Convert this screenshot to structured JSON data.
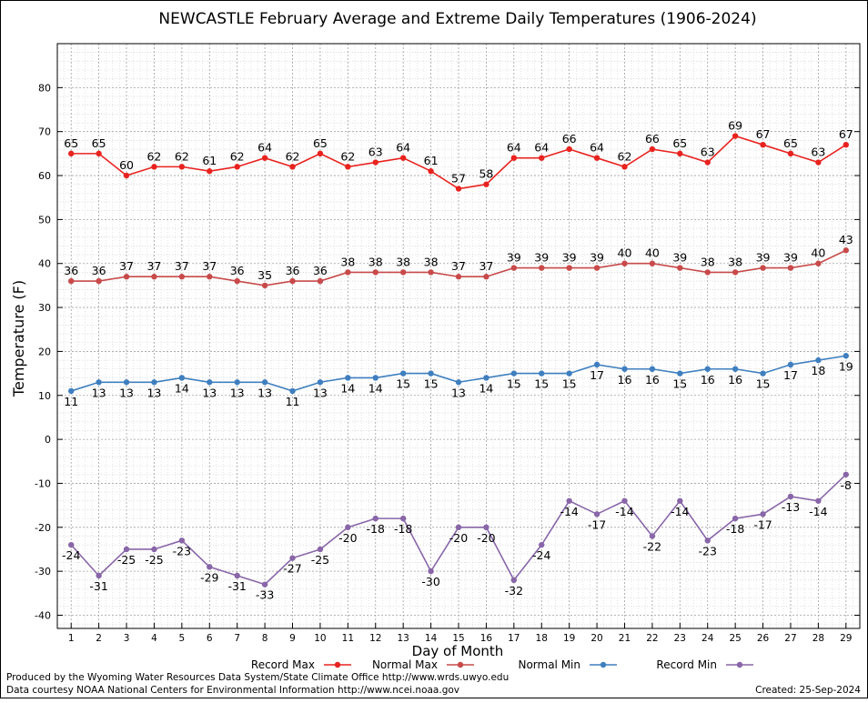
{
  "chart_data": {
    "type": "line",
    "title": "NEWCASTLE February Average and Extreme Daily Temperatures (1906-2024)",
    "xlabel": "Day of Month",
    "ylabel": "Temperature (F)",
    "ylim": [
      -43,
      90
    ],
    "yticks": [
      -40,
      -30,
      -20,
      -10,
      0,
      10,
      20,
      30,
      40,
      50,
      60,
      70,
      80
    ],
    "x": [
      1,
      2,
      3,
      4,
      5,
      6,
      7,
      8,
      9,
      10,
      11,
      12,
      13,
      14,
      15,
      16,
      17,
      18,
      19,
      20,
      21,
      22,
      23,
      24,
      25,
      26,
      27,
      28,
      29
    ],
    "grid": true,
    "legend_position": "bottom",
    "series": [
      {
        "name": "Record Max",
        "color": "#e8231f",
        "label_pos": "above",
        "values": [
          65,
          65,
          60,
          62,
          62,
          61,
          62,
          64,
          62,
          65,
          62,
          63,
          64,
          61,
          57,
          58,
          64,
          64,
          66,
          64,
          62,
          66,
          65,
          63,
          69,
          67,
          65,
          63,
          67
        ]
      },
      {
        "name": "Normal Max",
        "color": "#c84a4a",
        "label_pos": "above",
        "values": [
          36,
          36,
          37,
          37,
          37,
          37,
          36,
          35,
          36,
          36,
          38,
          38,
          38,
          38,
          37,
          37,
          39,
          39,
          39,
          39,
          40,
          40,
          39,
          38,
          38,
          39,
          39,
          40,
          43
        ]
      },
      {
        "name": "Normal Min",
        "color": "#3f7fbf",
        "label_pos": "below",
        "values": [
          11,
          13,
          13,
          13,
          14,
          13,
          13,
          13,
          11,
          13,
          14,
          14,
          15,
          15,
          13,
          14,
          15,
          15,
          15,
          17,
          16,
          16,
          15,
          16,
          16,
          15,
          17,
          18,
          19
        ]
      },
      {
        "name": "Record Min",
        "color": "#8866a8",
        "label_pos": "below",
        "values": [
          -24,
          -31,
          -25,
          -25,
          -23,
          -29,
          -31,
          -33,
          -27,
          -25,
          -20,
          -18,
          -18,
          -30,
          -20,
          -20,
          -32,
          -24,
          -14,
          -17,
          -14,
          -22,
          -14,
          -23,
          -18,
          -17,
          -13,
          -14,
          -8
        ]
      }
    ]
  },
  "footer": {
    "credit_line1": "Produced by the Wyoming Water Resources Data System/State Climate Office http://www.wrds.uwyo.edu",
    "credit_line2": "Data courtesy NOAA National Centers for Environmental Information http://www.ncei.noaa.gov",
    "created": "Created:  25-Sep-2024"
  }
}
